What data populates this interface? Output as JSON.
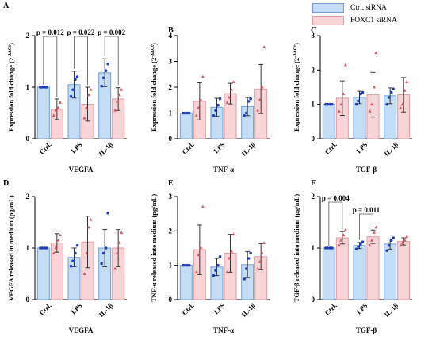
{
  "legend": {
    "entries": [
      {
        "label": "Ctrl. siRNA",
        "color": "#c5dcf5"
      },
      {
        "label": "FOXC1 siRNA",
        "color": "#f8d4d6"
      }
    ]
  },
  "colors": {
    "ctrl_fill": "#c5dcf5",
    "ctrl_stroke": "#6f9edb",
    "ctrl_point": "#1f3fb8",
    "foxc1_fill": "#f8d4d6",
    "foxc1_stroke": "#e09aa0",
    "foxc1_point": "#e0505a",
    "bracket": "#555555"
  },
  "chart_data": [
    {
      "panel": "A",
      "type": "bar",
      "xlabel": "VEGFA",
      "ylabel": "Expression fold change (2^-ΔΔCt)",
      "ylim": [
        0,
        2
      ],
      "yticks": [
        0,
        1,
        2
      ],
      "categories": [
        "Ctrl.",
        "LPS",
        "IL-1β"
      ],
      "series": [
        {
          "name": "Ctrl. siRNA",
          "values": [
            1.0,
            1.05,
            1.28
          ],
          "errors": [
            0.0,
            0.26,
            0.27
          ],
          "points": [
            [
              1,
              1,
              1,
              1
            ],
            [
              0.82,
              0.95,
              1.15,
              1.2
            ],
            [
              1.02,
              1.18,
              1.32,
              1.45
            ]
          ]
        },
        {
          "name": "FOXC1 siRNA",
          "values": [
            0.57,
            0.67,
            0.77
          ],
          "errors": [
            0.2,
            0.33,
            0.22
          ],
          "points": [
            [
              0.45,
              0.55,
              0.6,
              0.7
            ],
            [
              0.4,
              0.6,
              0.85,
              0.95
            ],
            [
              0.55,
              0.72,
              0.85,
              0.95
            ]
          ]
        }
      ],
      "annotations": [
        {
          "text": "p = 0.012",
          "category": 0
        },
        {
          "text": "p = 0.022",
          "category": 1
        },
        {
          "text": "p = 0.002",
          "category": 2
        }
      ]
    },
    {
      "panel": "B",
      "type": "bar",
      "xlabel": "TNF-α",
      "ylabel": "Expression fold change (2^-ΔΔCt)",
      "ylim": [
        0,
        4
      ],
      "yticks": [
        0,
        1,
        2,
        3,
        4
      ],
      "categories": [
        "Ctrl.",
        "LPS",
        "IL-1β"
      ],
      "series": [
        {
          "name": "Ctrl. siRNA",
          "values": [
            1.0,
            1.22,
            1.25
          ],
          "errors": [
            0.0,
            0.35,
            0.35
          ],
          "points": [
            [
              1,
              1,
              1,
              1
            ],
            [
              0.9,
              1.1,
              1.3,
              1.55
            ],
            [
              0.9,
              1.0,
              1.45,
              1.55
            ]
          ]
        },
        {
          "name": "FOXC1 siRNA",
          "values": [
            1.45,
            1.75,
            1.93
          ],
          "errors": [
            0.72,
            0.4,
            0.95
          ],
          "points": [
            [
              0.9,
              1.2,
              1.5,
              2.4
            ],
            [
              1.4,
              1.6,
              1.9,
              2.2
            ],
            [
              1.1,
              1.5,
              2.0,
              3.55
            ]
          ]
        }
      ],
      "annotations": []
    },
    {
      "panel": "C",
      "type": "bar",
      "xlabel": "TGF-β",
      "ylabel": "Expression fold change (2^-ΔΔCt)",
      "ylim": [
        0,
        3
      ],
      "yticks": [
        0,
        1,
        2,
        3
      ],
      "categories": [
        "Ctrl.",
        "LPS",
        "IL-1β"
      ],
      "series": [
        {
          "name": "Ctrl. siRNA",
          "values": [
            1.0,
            1.2,
            1.25
          ],
          "errors": [
            0.0,
            0.18,
            0.23
          ],
          "points": [
            [
              1,
              1,
              1,
              1
            ],
            [
              1.0,
              1.1,
              1.3,
              1.35
            ],
            [
              1.0,
              1.2,
              1.35,
              1.45
            ]
          ]
        },
        {
          "name": "FOXC1 siRNA",
          "values": [
            1.18,
            1.28,
            1.28
          ],
          "errors": [
            0.5,
            0.65,
            0.5
          ],
          "points": [
            [
              0.8,
              1.0,
              1.3,
              2.15
            ],
            [
              0.8,
              1.0,
              1.5,
              2.5
            ],
            [
              0.9,
              1.0,
              1.4,
              1.65
            ]
          ]
        }
      ],
      "annotations": []
    },
    {
      "panel": "D",
      "type": "bar",
      "xlabel": "VEGFA",
      "ylabel": "VEGFA released in medium (pg/mL)",
      "ylim": [
        0,
        2
      ],
      "yticks": [
        0,
        1,
        2
      ],
      "categories": [
        "Ctrl.",
        "LPS",
        "IL-1β"
      ],
      "series": [
        {
          "name": "Ctrl. siRNA",
          "values": [
            1.0,
            0.82,
            1.0
          ],
          "errors": [
            0.0,
            0.18,
            0.36
          ],
          "points": [
            [
              1,
              1,
              1,
              1
            ],
            [
              0.65,
              0.75,
              0.9,
              1.05
            ],
            [
              0.7,
              0.9,
              1.0,
              1.68
            ]
          ]
        },
        {
          "name": "FOXC1 siRNA",
          "values": [
            1.1,
            1.12,
            1.0
          ],
          "errors": [
            0.18,
            0.5,
            0.36
          ],
          "points": [
            [
              0.9,
              1.0,
              1.15,
              1.25
            ],
            [
              0.5,
              0.9,
              1.4,
              1.55
            ],
            [
              0.6,
              0.9,
              1.1,
              1.3
            ]
          ]
        }
      ],
      "annotations": []
    },
    {
      "panel": "E",
      "type": "bar",
      "xlabel": "TNF-α",
      "ylabel": "TNF-α released into medium (pg/mL)",
      "ylim": [
        0,
        3
      ],
      "yticks": [
        0,
        1,
        2,
        3
      ],
      "categories": [
        "Ctrl.",
        "LPS",
        "IL-1β"
      ],
      "series": [
        {
          "name": "Ctrl. siRNA",
          "values": [
            1.0,
            0.95,
            1.02
          ],
          "errors": [
            0.0,
            0.25,
            0.38
          ],
          "points": [
            [
              1,
              1,
              1,
              1
            ],
            [
              0.7,
              0.85,
              1.0,
              1.25
            ],
            [
              0.6,
              0.9,
              1.2,
              1.35
            ]
          ]
        },
        {
          "name": "FOXC1 siRNA",
          "values": [
            1.45,
            1.35,
            1.25
          ],
          "errors": [
            0.72,
            0.55,
            0.38
          ],
          "points": [
            [
              0.8,
              1.3,
              1.5,
              2.7
            ],
            [
              0.8,
              1.2,
              1.4,
              1.9
            ],
            [
              0.9,
              1.1,
              1.35,
              1.65
            ]
          ]
        }
      ],
      "annotations": []
    },
    {
      "panel": "F",
      "type": "bar",
      "xlabel": "TGF-β",
      "ylabel": "TGF-β released into medium (pg/mL)",
      "ylim": [
        0,
        2
      ],
      "yticks": [
        0,
        1,
        2
      ],
      "categories": [
        "Ctrl.",
        "LPS",
        "IL-1β"
      ],
      "series": [
        {
          "name": "Ctrl. siRNA",
          "values": [
            1.0,
            1.05,
            1.08
          ],
          "errors": [
            0.0,
            0.06,
            0.1
          ],
          "points": [
            [
              1,
              1,
              1,
              1
            ],
            [
              0.98,
              1.03,
              1.08,
              1.12
            ],
            [
              0.95,
              1.05,
              1.15,
              1.2
            ]
          ]
        },
        {
          "name": "FOXC1 siRNA",
          "values": [
            1.2,
            1.22,
            1.13
          ],
          "errors": [
            0.12,
            0.13,
            0.07
          ],
          "points": [
            [
              1.05,
              1.15,
              1.25,
              1.35
            ],
            [
              1.05,
              1.15,
              1.3,
              1.4
            ],
            [
              1.05,
              1.1,
              1.15,
              1.22
            ]
          ]
        }
      ],
      "annotations": [
        {
          "text": "p = 0.004",
          "category": 0
        },
        {
          "text": "p = 0.011",
          "category": 1
        }
      ]
    }
  ]
}
